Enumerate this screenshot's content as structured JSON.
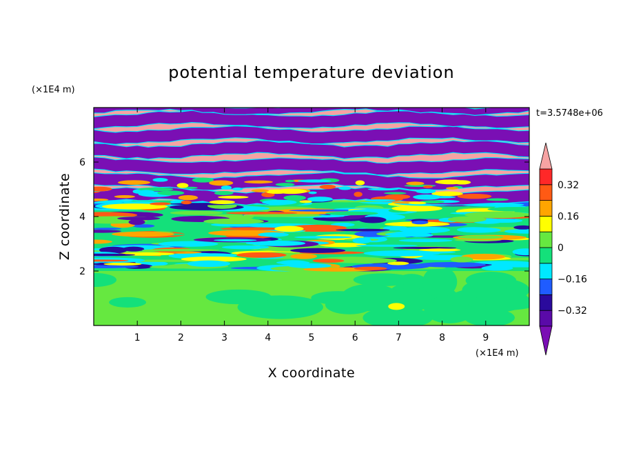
{
  "chart_data": {
    "type": "heatmap",
    "title": "potential temperature deviation",
    "xlabel": "X coordinate",
    "ylabel": "Z coordinate",
    "x_unit": "(×1E4 m)",
    "y_unit": "(×1E4 m)",
    "time_label": "t=3.5748e+06",
    "xlim": [
      0,
      10
    ],
    "ylim": [
      0,
      8
    ],
    "x_ticks": [
      "1",
      "2",
      "3",
      "4",
      "5",
      "6",
      "7",
      "8",
      "9"
    ],
    "y_ticks": [
      "2",
      "4",
      "6"
    ],
    "colorbar": {
      "levels": [
        -0.4,
        -0.32,
        -0.24,
        -0.16,
        -0.08,
        0,
        0.08,
        0.16,
        0.24,
        0.32,
        0.4
      ],
      "tick_labels": [
        "0.32",
        "0.16",
        "0",
        "−0.16",
        "−0.32"
      ],
      "tick_values": [
        0.32,
        0.16,
        0,
        -0.16,
        -0.32
      ],
      "colors_low_to_high": [
        "#5a0aa8",
        "#2a0a9c",
        "#1f5cff",
        "#00e8ff",
        "#14e07a",
        "#66e840",
        "#ffff00",
        "#ffa500",
        "#ff5a14",
        "#ff2828"
      ],
      "under_color": "#7a0fb4",
      "over_color": "#f6a3a3"
    },
    "bands": [
      {
        "z_range": [
          0,
          2
        ],
        "dominant": [
          "#14e07a",
          "#66e840"
        ],
        "pattern": "smooth blobs"
      },
      {
        "z_range": [
          2,
          4.5
        ],
        "dominant": [
          "#00e8ff",
          "#14e07a",
          "#ffff00",
          "#ffa500",
          "#ff2828",
          "#2a0a9c"
        ],
        "pattern": "turbulent streaks"
      },
      {
        "z_range": [
          4.5,
          8
        ],
        "dominant": [
          "#f6a3a3",
          "#7a0fb4"
        ],
        "pattern": "alternating horizontal layers"
      }
    ]
  }
}
